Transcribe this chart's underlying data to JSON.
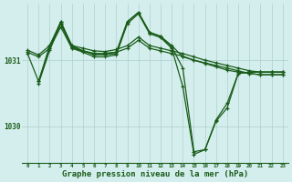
{
  "background_color": "#d4eeed",
  "grid_color": "#aed0cc",
  "line_color": "#1a5c1a",
  "xlabel": "Graphe pression niveau de la mer (hPa)",
  "xlabel_fontsize": 6.5,
  "xtick_labels": [
    "0",
    "1",
    "2",
    "3",
    "4",
    "5",
    "6",
    "7",
    "8",
    "9",
    "10",
    "11",
    "12",
    "13",
    "14",
    "15",
    "16",
    "17",
    "18",
    "19",
    "20",
    "21",
    "22",
    "23"
  ],
  "yticks": [
    1030,
    1031
  ],
  "ylim": [
    1029.45,
    1031.85
  ],
  "xlim": [
    -0.5,
    23.5
  ],
  "series1_x": [
    0,
    1,
    2,
    3,
    4,
    5,
    6,
    7,
    8,
    9,
    10,
    11,
    12,
    13,
    14,
    15,
    16,
    17,
    18,
    19,
    20,
    21,
    22,
    23
  ],
  "series1_y": [
    1031.15,
    1031.08,
    1031.22,
    1031.55,
    1031.22,
    1031.18,
    1031.14,
    1031.13,
    1031.16,
    1031.22,
    1031.35,
    1031.22,
    1031.18,
    1031.14,
    1031.1,
    1031.05,
    1031.0,
    1030.96,
    1030.92,
    1030.88,
    1030.84,
    1030.82,
    1030.82,
    1030.82
  ],
  "series2_x": [
    0,
    1,
    2,
    3,
    4,
    5,
    6,
    7,
    8,
    9,
    10,
    11,
    12,
    13,
    14,
    15,
    16,
    17,
    18,
    19,
    20,
    21,
    22,
    23
  ],
  "series2_y": [
    1031.12,
    1031.05,
    1031.18,
    1031.5,
    1031.18,
    1031.14,
    1031.1,
    1031.1,
    1031.12,
    1031.18,
    1031.3,
    1031.18,
    1031.14,
    1031.1,
    1031.06,
    1031.0,
    1030.96,
    1030.92,
    1030.88,
    1030.84,
    1030.8,
    1030.78,
    1030.78,
    1030.78
  ],
  "series3_x": [
    0,
    1,
    2,
    3,
    4,
    5,
    6,
    7,
    8,
    9,
    10,
    11,
    12,
    13,
    14,
    15,
    16,
    17,
    18,
    19,
    20,
    21,
    22,
    23
  ],
  "series3_y": [
    1031.1,
    1030.68,
    1031.22,
    1031.58,
    1031.22,
    1031.14,
    1031.1,
    1031.1,
    1031.12,
    1031.58,
    1031.72,
    1031.42,
    1031.36,
    1031.22,
    1031.05,
    1031.0,
    1030.95,
    1030.9,
    1030.85,
    1030.82,
    1030.8,
    1030.78,
    1030.78,
    1030.78
  ],
  "series4_x": [
    1,
    2,
    3,
    4,
    5,
    6,
    7,
    8,
    9,
    10,
    11,
    12,
    13,
    14,
    15,
    16,
    17,
    18,
    19,
    20,
    21,
    22,
    23
  ],
  "series4_y": [
    1030.68,
    1031.18,
    1031.58,
    1031.2,
    1031.14,
    1031.08,
    1031.08,
    1031.1,
    1031.58,
    1031.72,
    1031.42,
    1031.36,
    1031.2,
    1030.88,
    1029.62,
    1029.65,
    1030.08,
    1030.28,
    1030.8,
    1030.82,
    1030.82,
    1030.82,
    1030.82
  ],
  "series5_x": [
    1,
    2,
    3,
    4,
    5,
    6,
    7,
    8,
    9,
    10,
    11,
    12,
    13,
    14,
    15,
    16,
    17,
    18,
    19,
    20,
    21,
    22,
    23
  ],
  "series5_y": [
    1030.65,
    1031.15,
    1031.55,
    1031.18,
    1031.12,
    1031.05,
    1031.05,
    1031.08,
    1031.55,
    1031.7,
    1031.4,
    1031.34,
    1031.18,
    1030.6,
    1029.58,
    1029.65,
    1030.1,
    1030.35,
    1030.8,
    1030.82,
    1030.82,
    1030.82,
    1030.82
  ]
}
